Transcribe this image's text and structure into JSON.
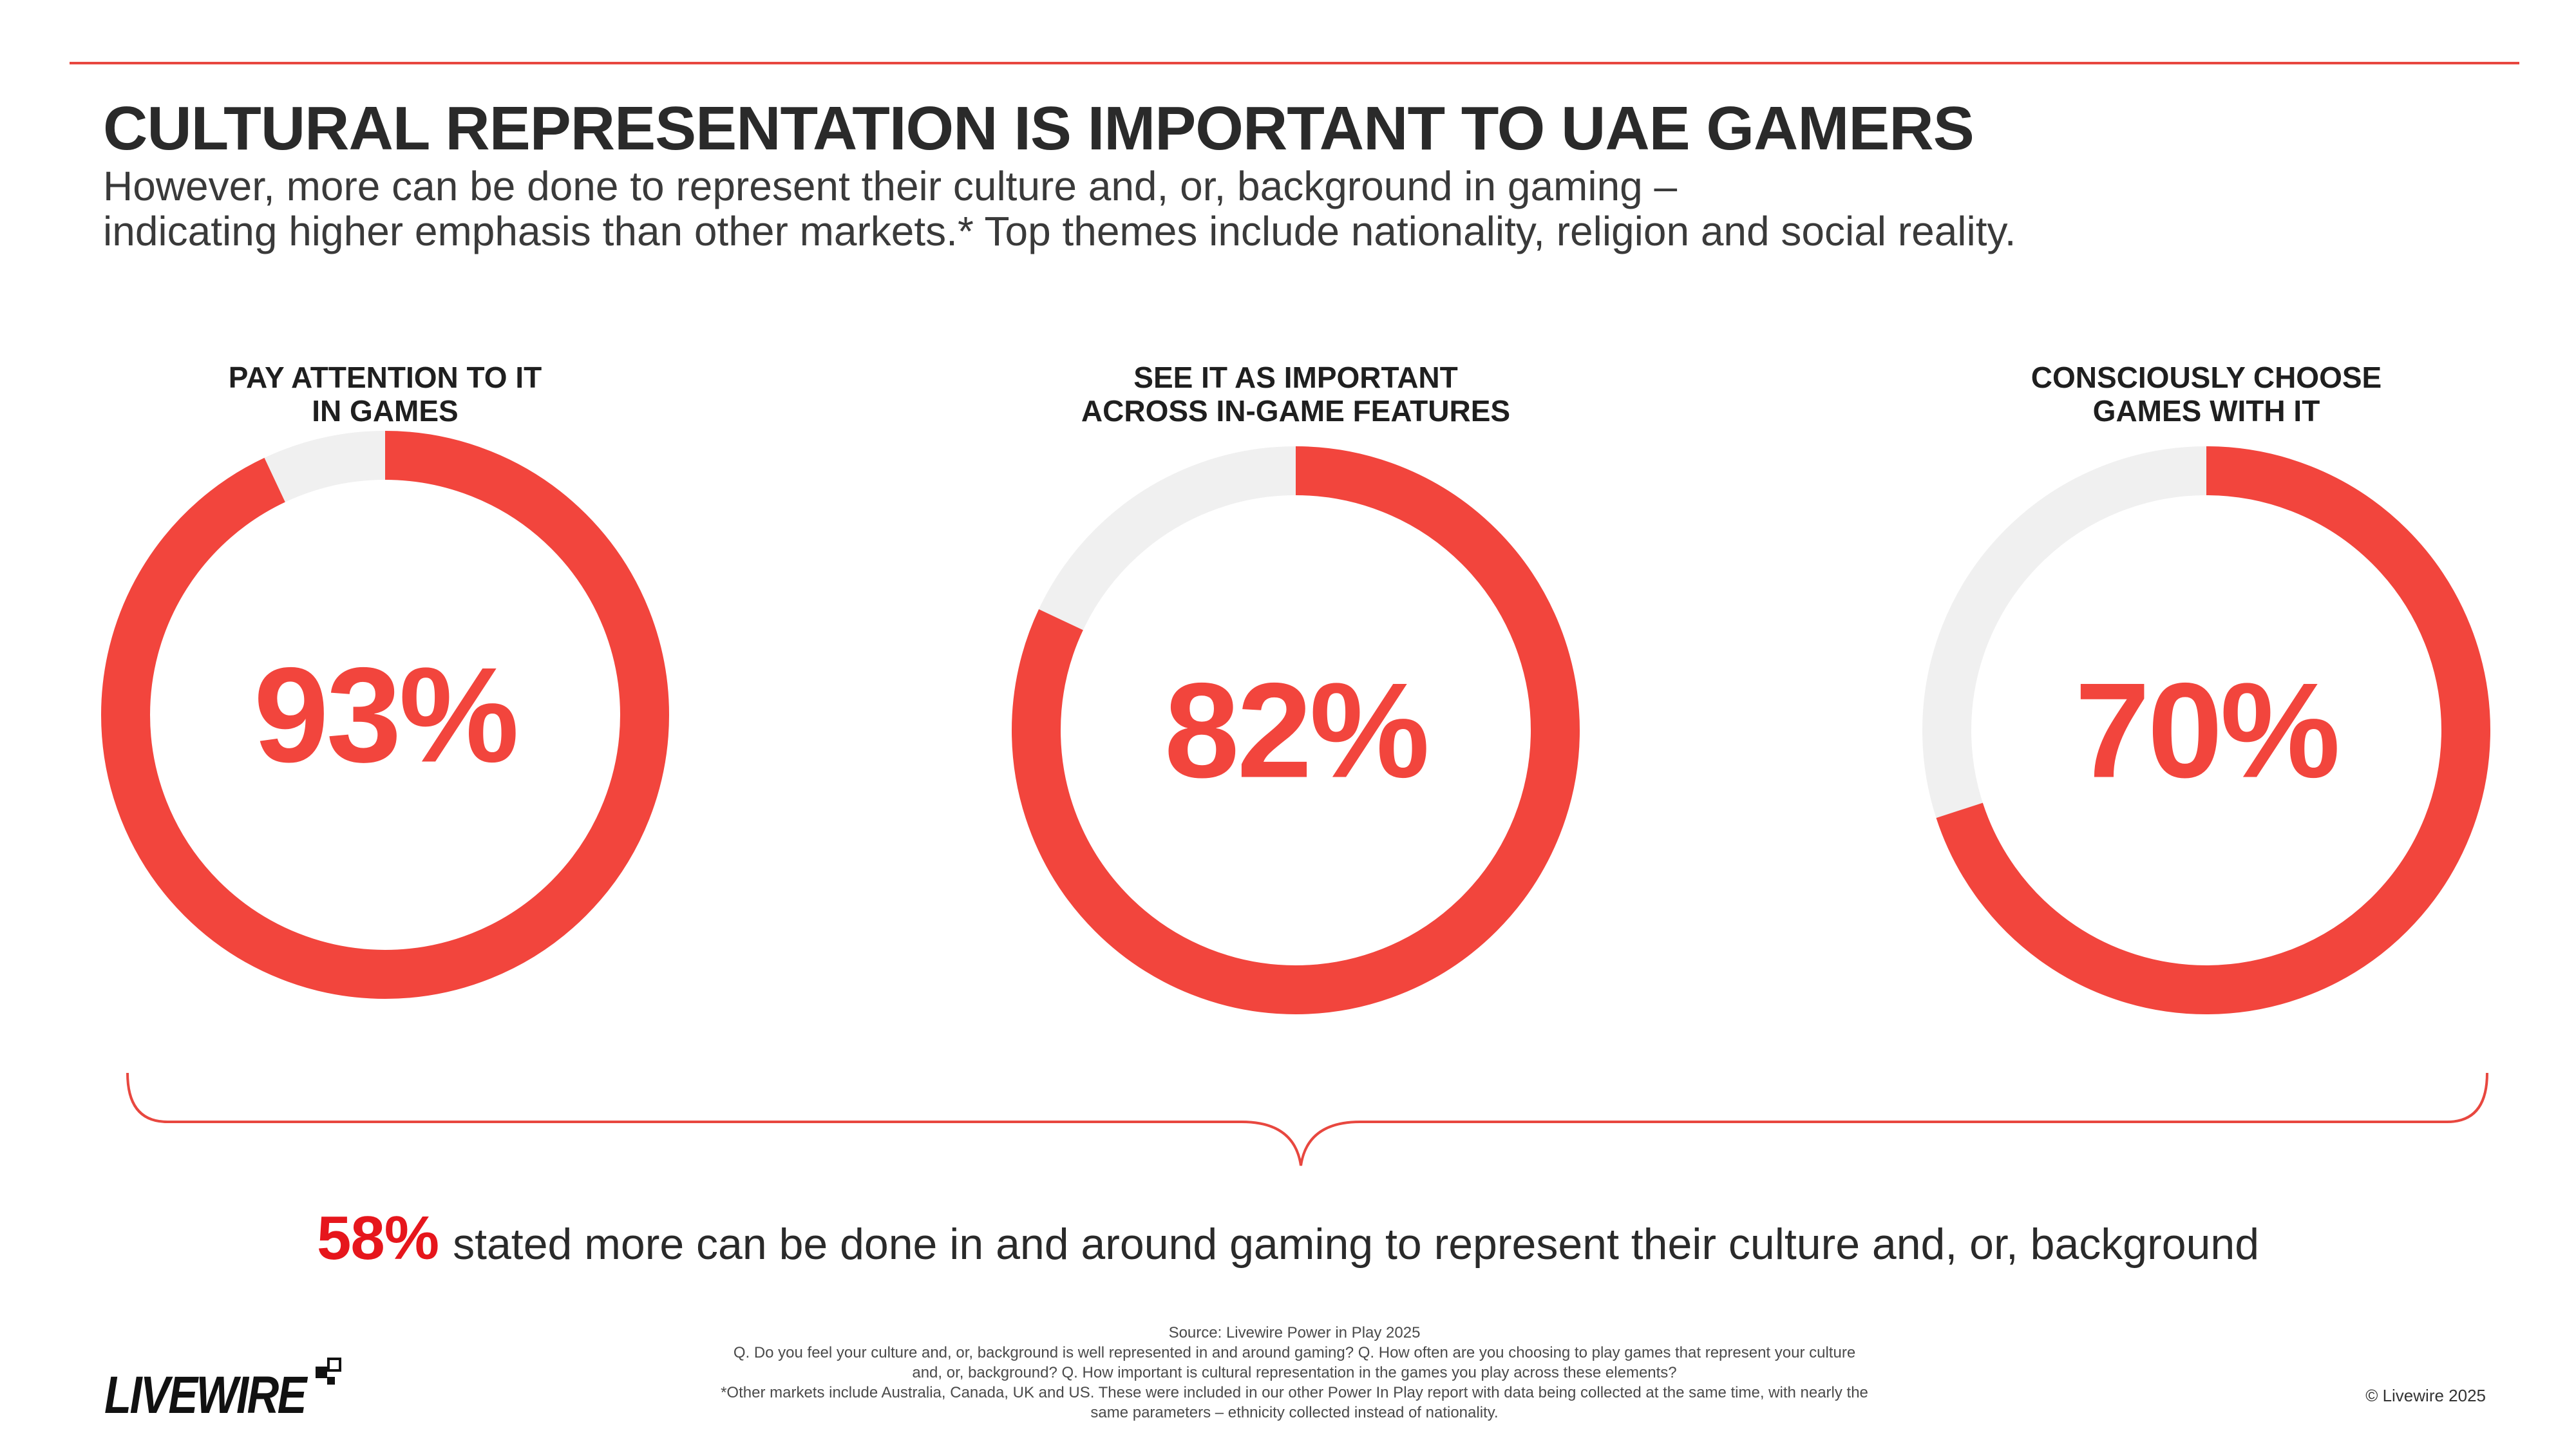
{
  "header": {
    "title": "CULTURAL REPRESENTATION IS IMPORTANT TO UAE GAMERS",
    "subtitle_line1": "However, more can be done to represent their culture and, or, background in gaming –",
    "subtitle_line2": "indicating higher emphasis than other markets.* Top themes include nationality, religion and social reality."
  },
  "chart_data": {
    "type": "pie",
    "categories": [
      "PAY ATTENTION TO IT IN GAMES",
      "SEE IT AS IMPORTANT ACROSS IN-GAME FEATURES",
      "CONSCIOUSLY CHOOSE GAMES WITH IT"
    ],
    "values": [
      93,
      82,
      70
    ],
    "donuts": [
      {
        "label_line1": "PAY ATTENTION TO IT",
        "label_line2": "IN GAMES",
        "value": 93,
        "value_label": "93%"
      },
      {
        "label_line1": "SEE IT AS IMPORTANT",
        "label_line2": "ACROSS IN-GAME FEATURES",
        "value": 82,
        "value_label": "82%"
      },
      {
        "label_line1": "CONSCIOUSLY CHOOSE",
        "label_line2": "GAMES WITH IT",
        "value": 70,
        "value_label": "70%"
      }
    ],
    "colors": {
      "value": "#f2453d",
      "remainder": "#f0f0f0"
    }
  },
  "callout": {
    "number": "58%",
    "text": "stated more can be done in and around gaming to represent their culture and, or, background"
  },
  "footer": {
    "source_lines": [
      "Source: Livewire Power in Play 2025",
      "Q. Do you feel your culture and, or, background is well represented in and around gaming? Q. How often are you choosing to play games that represent your culture",
      "and, or, background? Q. How important is cultural representation in the games you play across these elements?",
      "*Other markets include Australia, Canada, UK and US. These were included in our other Power In Play report with data being collected at the same time, with nearly the",
      "same parameters – ethnicity collected instead of nationality."
    ],
    "logo_text": "LIVEWIRE",
    "copyright": "© Livewire 2025"
  }
}
